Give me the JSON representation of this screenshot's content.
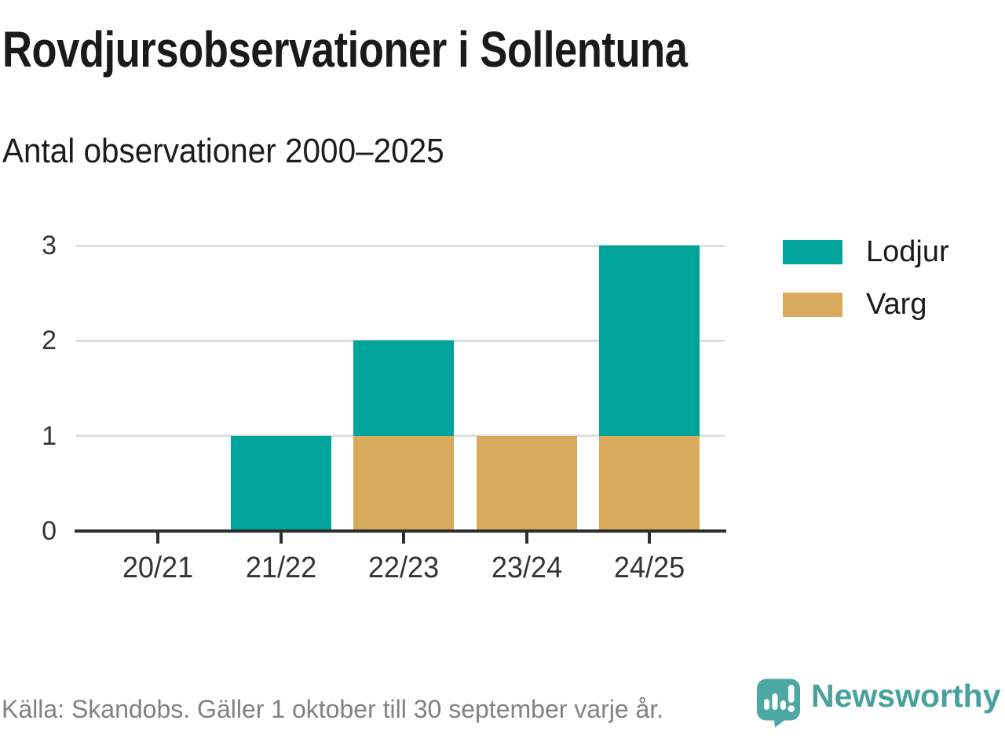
{
  "header": {
    "title": "Rovdjursobservationer i Sollentuna",
    "subtitle": "Antal observationer 2000–2025"
  },
  "chart_data": {
    "type": "bar",
    "stacked": true,
    "title": "Rovdjursobservationer i Sollentuna",
    "subtitle": "Antal observationer 2000–2025",
    "categories": [
      "20/21",
      "21/22",
      "22/23",
      "23/24",
      "24/25"
    ],
    "series": [
      {
        "name": "Varg",
        "color": "#d9aa5c",
        "values": [
          0,
          0,
          1,
          1,
          1
        ]
      },
      {
        "name": "Lodjur",
        "color": "#00a49b",
        "values": [
          0,
          1,
          1,
          0,
          2
        ]
      }
    ],
    "stack_totals": [
      0,
      1,
      2,
      1,
      3
    ],
    "legend": [
      {
        "label": "Lodjur",
        "color": "#00a49b"
      },
      {
        "label": "Varg",
        "color": "#d9aa5c"
      }
    ],
    "legend_position": "right",
    "xlabel": "",
    "ylabel": "",
    "ylim": [
      0,
      3
    ],
    "yticks": [
      0,
      1,
      2,
      3
    ],
    "grid": true
  },
  "footer": {
    "source": "Källa: Skandobs. Gäller 1 oktober till 30 september varje år.",
    "brand": "Newsworthy"
  },
  "colors": {
    "lodjur": "#00a49b",
    "varg": "#d9aa5c",
    "grid": "#dedede",
    "axis": "#2e2e2e",
    "axis_label": "#333333",
    "text": "#1a1a1a",
    "muted_text": "#818181",
    "brand": "#48a19e"
  }
}
